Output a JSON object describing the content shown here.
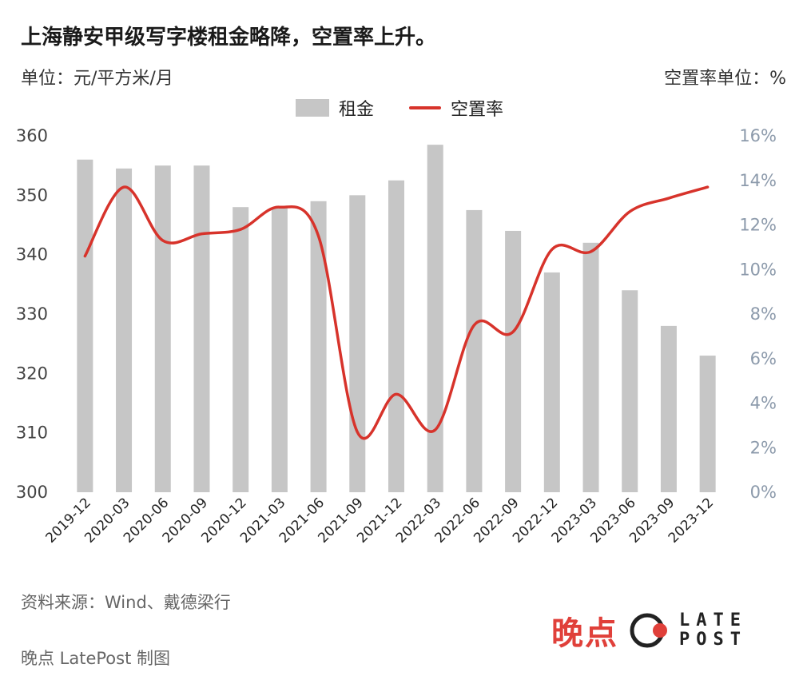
{
  "header": {
    "title": "上海静安甲级写字楼租金略降，空置率上升。",
    "unit_left": "单位：元/平方米/月",
    "unit_right": "空置率单位：%"
  },
  "legend": {
    "bar_label": "租金",
    "line_label": "空置率"
  },
  "footer": {
    "source": "资料来源：Wind、戴德梁行",
    "credit": "晚点 LatePost 制图",
    "brand_cn": "晚点",
    "brand_en_top": "LATE",
    "brand_en_bottom": "POST"
  },
  "colors": {
    "bar": "#c6c6c6",
    "line": "#d7332b",
    "right_axis": "#8c9aab",
    "brand": "#e0403a"
  },
  "chart_data": {
    "type": "bar",
    "title": "上海静安甲级写字楼租金略降，空置率上升。",
    "categories": [
      "2019-12",
      "2020-03",
      "2020-06",
      "2020-09",
      "2020-12",
      "2021-03",
      "2021-06",
      "2021-09",
      "2021-12",
      "2022-03",
      "2022-06",
      "2022-09",
      "2022-12",
      "2023-03",
      "2023-06",
      "2023-09",
      "2023-12"
    ],
    "series": [
      {
        "name": "租金",
        "type": "bar",
        "axis": "left",
        "values": [
          356,
          354.5,
          355,
          355,
          348,
          348,
          349,
          350,
          352.5,
          358.5,
          347.5,
          344,
          337,
          342,
          334,
          328,
          323
        ]
      },
      {
        "name": "空置率",
        "type": "line",
        "axis": "right",
        "values": [
          10.6,
          13.7,
          11.3,
          11.6,
          11.8,
          12.8,
          11.5,
          2.7,
          4.4,
          2.8,
          7.5,
          7.2,
          10.9,
          10.8,
          12.6,
          13.2,
          13.7
        ]
      }
    ],
    "y_left": {
      "range": [
        300,
        360
      ],
      "ticks": [
        "300",
        "310",
        "320",
        "330",
        "340",
        "350",
        "360"
      ]
    },
    "y_right": {
      "range": [
        0,
        16
      ],
      "ticks": [
        "0%",
        "2%",
        "4%",
        "6%",
        "8%",
        "10%",
        "12%",
        "14%",
        "16%"
      ]
    },
    "grid": false,
    "legend_position": "top-center"
  }
}
